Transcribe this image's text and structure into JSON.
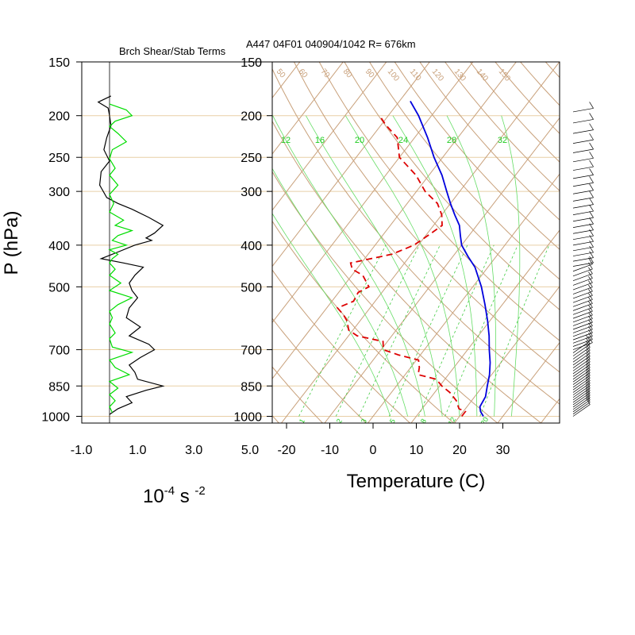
{
  "header": {
    "left_title": "Brch Shear/Stab Terms",
    "right_title": "A447 04F01 040904/1042 R= 676km"
  },
  "chart_data": [
    {
      "type": "line",
      "panel": "shear-stability-profile",
      "title": "Brch Shear/Stab Terms",
      "xlabel": "10-4 s -2",
      "xlabel_parts": {
        "base": "10",
        "exp1": "-4",
        "mid": " s ",
        "exp2": "-2"
      },
      "ylabel": "P (hPa)",
      "xlim": [
        -1.0,
        5.0
      ],
      "ylim": [
        1000,
        150
      ],
      "y_scale": "log",
      "x_ticks": [
        "-1.0",
        "1.0",
        "3.0",
        "5.0"
      ],
      "y_ticks": [
        "150",
        "200",
        "250",
        "300",
        "400",
        "500",
        "700",
        "850",
        "1000"
      ],
      "colors": {
        "shear": "#000000",
        "stability": "#00dd00",
        "zero_line": "#000000",
        "isobar": "#e8cfa6"
      },
      "series": [
        {
          "key": "black",
          "p": [
            180,
            186,
            192,
            200,
            211,
            225,
            240,
            255,
            270,
            290,
            310,
            320,
            330,
            345,
            360,
            375,
            385,
            390,
            400,
            415,
            430,
            440,
            450,
            470,
            490,
            510,
            530,
            560,
            590,
            620,
            650,
            680,
            700,
            730,
            760,
            790,
            820,
            850,
            870,
            900,
            930,
            960,
            990
          ],
          "x": [
            0.05,
            -0.4,
            -0.05,
            0.0,
            0.05,
            -0.1,
            -0.2,
            0.0,
            -0.3,
            -0.35,
            -0.1,
            0.3,
            0.8,
            1.4,
            1.9,
            1.6,
            1.3,
            1.5,
            0.9,
            0.3,
            -0.3,
            0.5,
            1.2,
            0.9,
            0.7,
            0.8,
            1.0,
            0.7,
            0.6,
            1.1,
            0.7,
            1.4,
            1.6,
            1.1,
            0.7,
            0.9,
            1.0,
            1.9,
            1.3,
            0.6,
            0.8,
            0.3,
            0.0
          ]
        },
        {
          "key": "green",
          "p": [
            188,
            194,
            200,
            206,
            212,
            220,
            230,
            240,
            252,
            265,
            275,
            290,
            305,
            320,
            335,
            350,
            360,
            370,
            380,
            390,
            400,
            410,
            420,
            430,
            440,
            455,
            470,
            490,
            510,
            530,
            550,
            570,
            590,
            610,
            640,
            660,
            690,
            710,
            740,
            770,
            800,
            830,
            860,
            890,
            920,
            950,
            980
          ],
          "x": [
            0.0,
            0.6,
            0.8,
            0.2,
            0.0,
            0.3,
            0.6,
            0.1,
            0.0,
            0.2,
            0.0,
            0.3,
            0.0,
            0.15,
            0.0,
            0.5,
            0.2,
            0.8,
            0.3,
            0.1,
            0.6,
            0.0,
            0.3,
            0.1,
            0.0,
            0.2,
            0.0,
            0.4,
            0.0,
            0.8,
            0.3,
            0.0,
            0.1,
            0.0,
            0.2,
            0.0,
            0.1,
            0.8,
            0.0,
            0.2,
            0.7,
            0.0,
            0.3,
            0.0,
            0.2,
            0.0,
            0.1
          ]
        }
      ]
    },
    {
      "type": "line",
      "panel": "skew-t",
      "title": "A447 04F01 040904/1042 R= 676km",
      "xlabel": "Temperature (C)",
      "xlim": [
        -25,
        40
      ],
      "ylim": [
        1000,
        150
      ],
      "y_scale": "log",
      "x_ticks": [
        "-20",
        "-10",
        "0",
        "10",
        "20",
        "30"
      ],
      "y_ticks": [
        "150",
        "200",
        "250",
        "300",
        "400",
        "500",
        "700",
        "850",
        "1000"
      ],
      "colors": {
        "temperature": "#0000dd",
        "dewpoint": "#dd0000",
        "isotherm": "#c8a07a",
        "adiabat": "#c8a07a",
        "mixing_ratio": "#44cc44"
      },
      "dry_adiabat_labels": [
        "50",
        "60",
        "70",
        "80",
        "90",
        "100",
        "110",
        "120",
        "130",
        "140",
        "150"
      ],
      "moist_adiabat_labels": [
        "12",
        "16",
        "20",
        "24",
        "28",
        "32"
      ],
      "mixing_ratio_labels": [
        "1",
        "2",
        "3",
        "5",
        "8",
        "12",
        "20"
      ],
      "series": [
        {
          "key": "temperature",
          "points": [
            [
              1000,
              25.5
            ],
            [
              975,
              24.0
            ],
            [
              950,
              23.0
            ],
            [
              900,
              22.5
            ],
            [
              850,
              21.0
            ],
            [
              800,
              19.5
            ],
            [
              750,
              17.5
            ],
            [
              700,
              15.0
            ],
            [
              650,
              12.5
            ],
            [
              600,
              9.5
            ],
            [
              550,
              6.0
            ],
            [
              500,
              2.0
            ],
            [
              450,
              -3.0
            ],
            [
              425,
              -6.5
            ],
            [
              400,
              -10.0
            ],
            [
              380,
              -12.0
            ],
            [
              360,
              -14.0
            ],
            [
              340,
              -17.0
            ],
            [
              320,
              -20.0
            ],
            [
              300,
              -23.0
            ],
            [
              275,
              -27.0
            ],
            [
              250,
              -32.0
            ],
            [
              225,
              -37.0
            ],
            [
              200,
              -43.0
            ],
            [
              185,
              -47.5
            ]
          ]
        },
        {
          "key": "dewpoint",
          "points": [
            [
              1000,
              20.5
            ],
            [
              975,
              20.5
            ],
            [
              960,
              18.5
            ],
            [
              920,
              16.5
            ],
            [
              880,
              13.5
            ],
            [
              850,
              10.5
            ],
            [
              820,
              8.0
            ],
            [
              800,
              3.0
            ],
            [
              770,
              2.0
            ],
            [
              740,
              0.5
            ],
            [
              720,
              -5.0
            ],
            [
              700,
              -9.5
            ],
            [
              670,
              -11.0
            ],
            [
              650,
              -18.0
            ],
            [
              630,
              -21.0
            ],
            [
              600,
              -23.0
            ],
            [
              580,
              -25.0
            ],
            [
              560,
              -27.5
            ],
            [
              540,
              -25.0
            ],
            [
              515,
              -25.5
            ],
            [
              500,
              -24.0
            ],
            [
              470,
              -27.5
            ],
            [
              455,
              -31.0
            ],
            [
              440,
              -32.5
            ],
            [
              420,
              -24.5
            ],
            [
              400,
              -21.0
            ],
            [
              380,
              -19.5
            ],
            [
              360,
              -18.0
            ],
            [
              340,
              -20.0
            ],
            [
              320,
              -23.0
            ],
            [
              300,
              -28.0
            ],
            [
              275,
              -33.0
            ],
            [
              250,
              -40.0
            ],
            [
              225,
              -44.0
            ],
            [
              210,
              -49.0
            ],
            [
              200,
              -52.0
            ]
          ]
        }
      ]
    }
  ],
  "wind_profile": {
    "label": "wind barbs",
    "color": "#000000"
  }
}
